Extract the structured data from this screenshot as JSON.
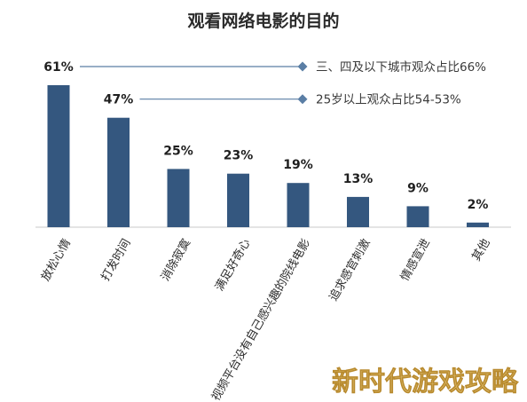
{
  "chart_data": {
    "type": "bar",
    "title": "观看网络电影的目的",
    "categories": [
      "放松心情",
      "打发时间",
      "消除寂寞",
      "满足好奇心",
      "视频平台没有自己感兴趣的院线电影",
      "追求感官刺激",
      "情感宣泄",
      "其他"
    ],
    "values": [
      61,
      47,
      25,
      23,
      19,
      13,
      9,
      2
    ],
    "value_labels": [
      "61%",
      "47%",
      "25%",
      "23%",
      "19%",
      "13%",
      "9%",
      "2%"
    ],
    "ylim": [
      0,
      70
    ],
    "grid": false,
    "bar_color": "#34577f",
    "annotations": [
      {
        "text": "三、四及以下城市观众占比66%",
        "ref_label": "61%"
      },
      {
        "text": "25岁以上观众占比54-53%",
        "ref_label": "47%"
      }
    ],
    "annotation_color": "#5a7ea5"
  },
  "watermark": "新时代游戏攻略"
}
